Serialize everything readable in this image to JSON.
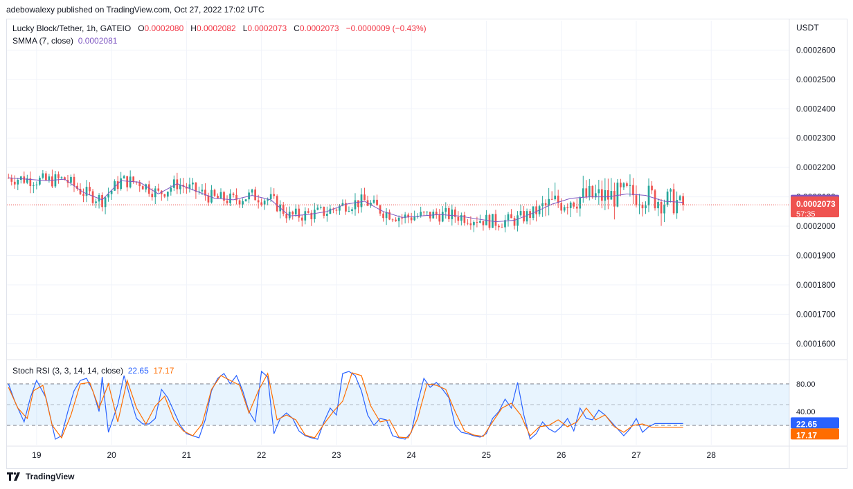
{
  "publisher_line": "adebowalexy published on TradingView.com, Oct 27, 2022 17:02 UTC",
  "legend": {
    "symbol": "Lucky Block/Tether, 1h, GATEIO",
    "o_key": "O",
    "o_val": "0.0002080",
    "h_key": "H",
    "h_val": "0.0002082",
    "l_key": "L",
    "l_val": "0.0002073",
    "c_key": "C",
    "c_val": "0.0002073",
    "change": "−0.0000009 (−0.43%)",
    "smma_label": "SMMA (7, close)",
    "smma_val": "0.0002081",
    "stoch_label": "Stoch RSI (3, 3, 14, 14, close)",
    "stoch_k": "22.65",
    "stoch_d": "17.17"
  },
  "currency": "USDT",
  "footer_brand": "TradingView",
  "colors": {
    "up": "#26a69a",
    "down": "#ef5350",
    "smma": "#7e57c2",
    "stoch_k": "#2962ff",
    "stoch_d": "#ff6d00",
    "band": "#2196f3"
  },
  "chart_data": [
    {
      "type": "candlestick",
      "ylim": [
        0.000155,
        0.00027
      ],
      "y_ticks": [
        "0.0001600",
        "0.0001700",
        "0.0001800",
        "0.0001900",
        "0.0002000",
        "0.0002100",
        "0.0002200",
        "0.0002300",
        "0.0002400",
        "0.0002500",
        "0.0002600"
      ],
      "y_tick_values": [
        0.00016,
        0.00017,
        0.00018,
        0.00019,
        0.0002,
        0.00021,
        0.00022,
        0.00023,
        0.00024,
        0.00025,
        0.00026
      ],
      "x_ticks": [
        "19",
        "20",
        "21",
        "22",
        "23",
        "24",
        "25",
        "26",
        "27",
        "28"
      ],
      "x_tick_hours": [
        9,
        33,
        57,
        81,
        105,
        129,
        153,
        177,
        201,
        225
      ],
      "last_price_label": "0.0002073",
      "smma_label_value": "0.0002081",
      "countdown": "57:35",
      "series": [
        {
          "name": "SMMA (7, close)",
          "x_hours": [
            0,
            6,
            12,
            18,
            24,
            30,
            36,
            42,
            48,
            54,
            60,
            66,
            72,
            78,
            84,
            90,
            96,
            102,
            108,
            114,
            120,
            126,
            132,
            138,
            144,
            150,
            156,
            162,
            168,
            174,
            180,
            186,
            192,
            198,
            204,
            210,
            216
          ],
          "values": [
            0.0002165,
            0.000216,
            0.0002155,
            0.000216,
            0.0002115,
            0.000209,
            0.0002155,
            0.000215,
            0.000211,
            0.0002145,
            0.000212,
            0.0002095,
            0.000209,
            0.0002105,
            0.000209,
            0.0002035,
            0.000204,
            0.000205,
            0.0002075,
            0.0002085,
            0.000205,
            0.000203,
            0.0002035,
            0.000204,
            0.0002035,
            0.0002025,
            0.0002015,
            0.000202,
            0.0002045,
            0.0002075,
            0.0002095,
            0.00021,
            0.00021,
            0.000211,
            0.0002105,
            0.0002085,
            0.0002081
          ]
        }
      ]
    },
    {
      "type": "line",
      "title": "Stoch RSI (3, 3, 14, 14, close)",
      "ylim": [
        0,
        100
      ],
      "y_ticks": [
        "80.00",
        "40.00"
      ],
      "y_tick_values": [
        80,
        40
      ],
      "band": [
        20,
        80
      ],
      "series": [
        {
          "name": "K",
          "value_label": "22.65",
          "x_hours": [
            0,
            2,
            5,
            7,
            9,
            12,
            15,
            17,
            19,
            21,
            23,
            25,
            27,
            29,
            30,
            32,
            35,
            37,
            39,
            41,
            43,
            45,
            47,
            49,
            51,
            53,
            55,
            57,
            59,
            61,
            63,
            65,
            67,
            69,
            71,
            73,
            75,
            77,
            79,
            81,
            83,
            85,
            87,
            89,
            91,
            93,
            95,
            97,
            99,
            101,
            103,
            105,
            107,
            109,
            111,
            113,
            115,
            117,
            119,
            121,
            123,
            125,
            127,
            129,
            131,
            133,
            135,
            137,
            139,
            141,
            143,
            145,
            147,
            149,
            151,
            153,
            155,
            157,
            159,
            161,
            163,
            165,
            167,
            169,
            171,
            173,
            175,
            177,
            179,
            181,
            183,
            185,
            187,
            189,
            191,
            193,
            195,
            197,
            199,
            201,
            203,
            205,
            207,
            209,
            211,
            213,
            215,
            216
          ],
          "values": [
            80,
            55,
            25,
            60,
            85,
            60,
            0,
            5,
            40,
            70,
            85,
            88,
            70,
            40,
            90,
            10,
            50,
            92,
            60,
            30,
            22,
            22,
            30,
            72,
            60,
            40,
            20,
            8,
            5,
            2,
            28,
            70,
            88,
            95,
            80,
            92,
            70,
            40,
            25,
            98,
            90,
            8,
            30,
            38,
            30,
            12,
            5,
            2,
            0,
            25,
            45,
            35,
            95,
            98,
            92,
            70,
            35,
            20,
            30,
            28,
            5,
            2,
            0,
            10,
            52,
            88,
            75,
            82,
            72,
            60,
            20,
            10,
            8,
            5,
            3,
            8,
            30,
            40,
            58,
            45,
            82,
            35,
            0,
            8,
            25,
            15,
            10,
            18,
            30,
            12,
            45,
            30,
            28,
            42,
            35,
            25,
            15,
            5,
            15,
            30,
            10,
            18,
            22.65,
            22.65,
            22.65,
            22.65,
            22.65,
            22.65
          ]
        },
        {
          "name": "D",
          "value_label": "17.17",
          "x_hours": [
            0,
            3,
            6,
            8,
            11,
            14,
            17,
            20,
            23,
            26,
            29,
            32,
            35,
            38,
            41,
            44,
            47,
            50,
            53,
            56,
            59,
            62,
            65,
            68,
            71,
            74,
            77,
            80,
            83,
            86,
            89,
            92,
            95,
            98,
            101,
            104,
            107,
            110,
            113,
            116,
            119,
            122,
            125,
            128,
            131,
            134,
            137,
            140,
            143,
            146,
            149,
            152,
            155,
            158,
            161,
            164,
            167,
            170,
            173,
            176,
            179,
            182,
            185,
            188,
            191,
            194,
            197,
            200,
            203,
            206,
            209,
            212,
            215,
            216
          ],
          "values": [
            75,
            45,
            30,
            70,
            78,
            20,
            2,
            35,
            80,
            82,
            45,
            80,
            25,
            85,
            45,
            22,
            48,
            62,
            28,
            12,
            5,
            22,
            72,
            92,
            85,
            78,
            38,
            70,
            95,
            28,
            35,
            28,
            6,
            2,
            22,
            40,
            55,
            96,
            92,
            48,
            25,
            28,
            3,
            2,
            30,
            80,
            78,
            72,
            40,
            12,
            6,
            4,
            25,
            45,
            52,
            35,
            5,
            18,
            20,
            28,
            18,
            25,
            45,
            28,
            35,
            18,
            10,
            20,
            22,
            17.17,
            17.17,
            17.17,
            17.17,
            17.17
          ]
        }
      ]
    }
  ]
}
